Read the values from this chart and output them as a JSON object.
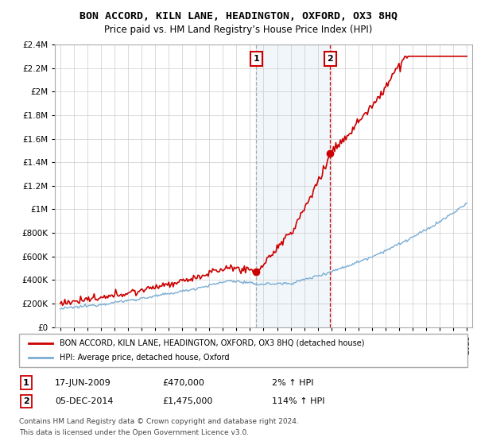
{
  "title": "BON ACCORD, KILN LANE, HEADINGTON, OXFORD, OX3 8HQ",
  "subtitle": "Price paid vs. HM Land Registry’s House Price Index (HPI)",
  "hpi_color": "#7aadd4",
  "price_color": "#cc0000",
  "annotation_color": "#cc0000",
  "background_color": "#ffffff",
  "grid_color": "#cccccc",
  "sale1_date_label": "17-JUN-2009",
  "sale1_price": 470000,
  "sale1_pct": "2%",
  "sale2_date_label": "05-DEC-2014",
  "sale2_price": 1475000,
  "sale2_pct": "114%",
  "legend_label_house": "BON ACCORD, KILN LANE, HEADINGTON, OXFORD, OX3 8HQ (detached house)",
  "legend_label_hpi": "HPI: Average price, detached house, Oxford",
  "footnote1": "Contains HM Land Registry data © Crown copyright and database right 2024.",
  "footnote2": "This data is licensed under the Open Government Licence v3.0.",
  "ylim": [
    0,
    2400000
  ],
  "ytick_values": [
    0,
    200000,
    400000,
    600000,
    800000,
    1000000,
    1200000,
    1400000,
    1600000,
    1800000,
    2000000,
    2200000,
    2400000
  ],
  "ytick_labels": [
    "£0",
    "£200K",
    "£400K",
    "£600K",
    "£800K",
    "£1M",
    "£1.2M",
    "£1.4M",
    "£1.6M",
    "£1.8M",
    "£2M",
    "£2.2M",
    "£2.4M"
  ],
  "sale1_year": 2009.46,
  "sale2_year": 2014.92,
  "xlim_left": 1994.6,
  "xlim_right": 2025.4
}
